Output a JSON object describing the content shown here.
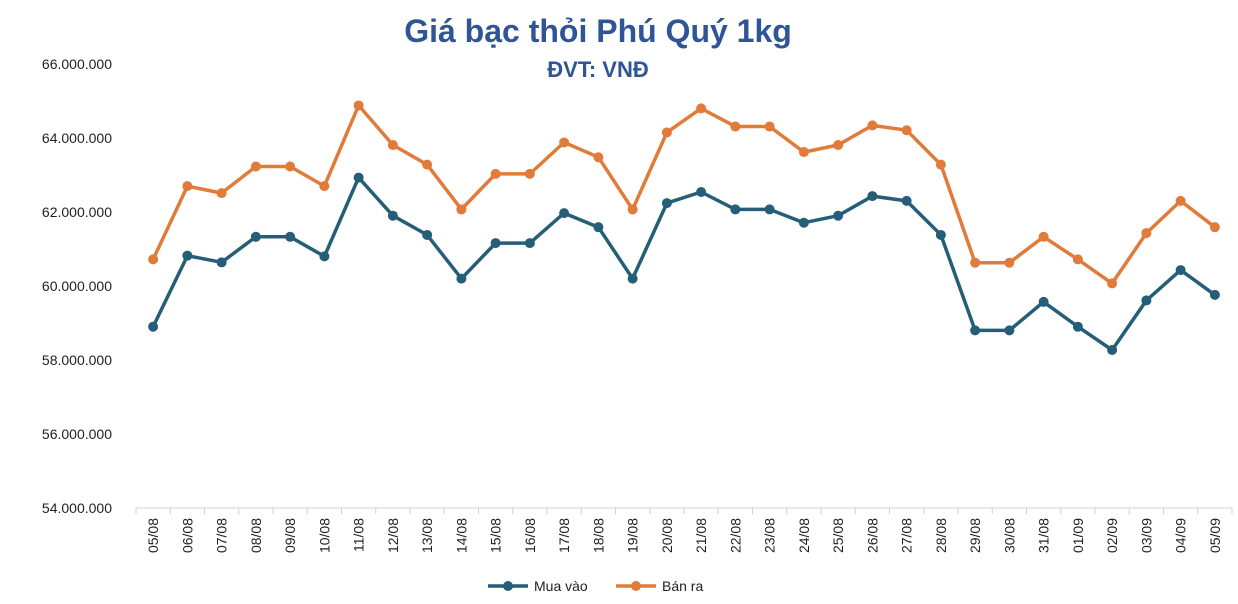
{
  "chart_data": {
    "type": "line",
    "title": "Giá bạc thỏi Phú Quý 1kg",
    "subtitle": "ĐVT: VNĐ",
    "xlabel": "",
    "ylabel": "",
    "ylim": [
      54000000,
      66000000
    ],
    "y_ticks": [
      "54.000.000",
      "56.000.000",
      "58.000.000",
      "60.000.000",
      "62.000.000",
      "64.000.000",
      "66.000.000"
    ],
    "grid": false,
    "legend_position": "bottom",
    "categories": [
      "05/08",
      "06/08",
      "07/08",
      "08/08",
      "09/08",
      "10/08",
      "11/08",
      "12/08",
      "13/08",
      "14/08",
      "15/08",
      "16/08",
      "17/08",
      "18/08",
      "19/08",
      "20/08",
      "21/08",
      "22/08",
      "23/08",
      "24/08",
      "25/08",
      "26/08",
      "27/08",
      "28/08",
      "29/08",
      "30/08",
      "31/08",
      "01/09",
      "02/09",
      "03/09",
      "04/09",
      "05/09"
    ],
    "series": [
      {
        "name": "Mua vào",
        "color": "#255e79",
        "values": [
          58900000,
          60820000,
          60640000,
          61330000,
          61330000,
          60800000,
          62930000,
          61900000,
          61380000,
          60200000,
          61160000,
          61160000,
          61970000,
          61590000,
          60200000,
          62240000,
          62540000,
          62070000,
          62070000,
          61710000,
          61900000,
          62430000,
          62300000,
          61380000,
          58800000,
          58800000,
          59570000,
          58900000,
          58270000,
          59610000,
          60430000,
          59760000
        ]
      },
      {
        "name": "Bán ra",
        "color": "#e07b39",
        "values": [
          60720000,
          62700000,
          62510000,
          63230000,
          63230000,
          62700000,
          64880000,
          63810000,
          63280000,
          62070000,
          63030000,
          63030000,
          63880000,
          63480000,
          62070000,
          64150000,
          64800000,
          64310000,
          64310000,
          63620000,
          63810000,
          64340000,
          64210000,
          63280000,
          60630000,
          60630000,
          61330000,
          60720000,
          60070000,
          61430000,
          62300000,
          61590000
        ]
      }
    ]
  }
}
